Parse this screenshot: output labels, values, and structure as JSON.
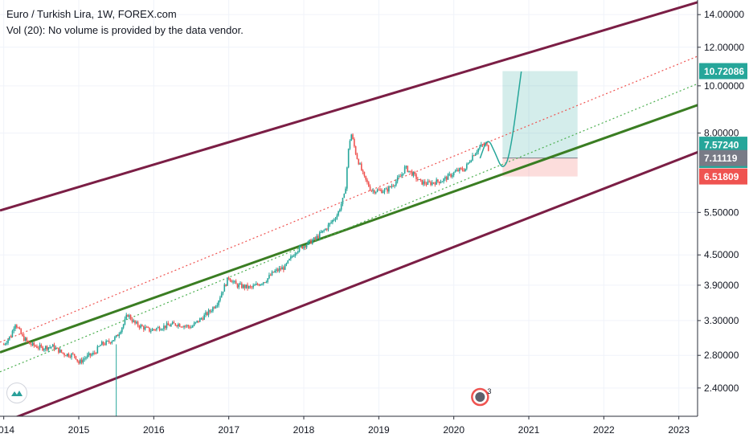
{
  "legend": {
    "title": "Euro / Turkish Lira, 1W, FOREX.com",
    "volume": "Vol (20): No volume is provided by the data vendor."
  },
  "chart_data": {
    "type": "line",
    "title": "Euro / Turkish Lira, 1W, FOREX.com",
    "y_scale": "log",
    "ylim": [
      2.1,
      15.0
    ],
    "xlim": [
      2013.95,
      2023.25
    ],
    "x_ticks": [
      "2014",
      "2015",
      "2016",
      "2017",
      "2018",
      "2019",
      "2020",
      "2021",
      "2022",
      "2023"
    ],
    "y_ticks": [
      "14.00000",
      "12.00000",
      "10.00000",
      "8.00000",
      "5.50000",
      "4.50000",
      "3.90000",
      "3.30000",
      "2.80000",
      "2.40000"
    ],
    "price_labels": [
      {
        "label": "10.72086",
        "value": 10.72086,
        "color": "#26a69a"
      },
      {
        "label": "7.57240",
        "value": 7.5724,
        "color": "#26a69a"
      },
      {
        "label": "09:19:09",
        "value": 7.32,
        "color": "#26a69a"
      },
      {
        "label": "7.11119",
        "value": 7.11119,
        "color": "#787b86"
      },
      {
        "label": "6.51809",
        "value": 6.51809,
        "color": "#ef5350"
      }
    ],
    "series": [
      {
        "kind": "ohlc-weekly",
        "points": [
          [
            2014.0,
            2.95
          ],
          [
            2014.1,
            3.08
          ],
          [
            2014.15,
            3.27
          ],
          [
            2014.25,
            3.05
          ],
          [
            2014.35,
            2.95
          ],
          [
            2014.5,
            2.9
          ],
          [
            2014.65,
            2.92
          ],
          [
            2014.8,
            2.82
          ],
          [
            2014.95,
            2.8
          ],
          [
            2015.0,
            2.7
          ],
          [
            2015.1,
            2.78
          ],
          [
            2015.2,
            2.82
          ],
          [
            2015.3,
            2.95
          ],
          [
            2015.4,
            2.98
          ],
          [
            2015.5,
            3.05
          ],
          [
            2015.6,
            3.25
          ],
          [
            2015.65,
            3.4
          ],
          [
            2015.75,
            3.25
          ],
          [
            2015.85,
            3.2
          ],
          [
            2015.95,
            3.15
          ],
          [
            2016.1,
            3.2
          ],
          [
            2016.3,
            3.25
          ],
          [
            2016.5,
            3.2
          ],
          [
            2016.6,
            3.3
          ],
          [
            2016.75,
            3.45
          ],
          [
            2016.85,
            3.6
          ],
          [
            2016.95,
            3.9
          ],
          [
            2017.0,
            4.05
          ],
          [
            2017.1,
            3.9
          ],
          [
            2017.3,
            3.85
          ],
          [
            2017.5,
            4.0
          ],
          [
            2017.6,
            4.15
          ],
          [
            2017.75,
            4.25
          ],
          [
            2017.9,
            4.6
          ],
          [
            2018.0,
            4.7
          ],
          [
            2018.15,
            4.85
          ],
          [
            2018.3,
            5.1
          ],
          [
            2018.45,
            5.45
          ],
          [
            2018.55,
            6.0
          ],
          [
            2018.6,
            7.5
          ],
          [
            2018.63,
            8.0
          ],
          [
            2018.7,
            7.2
          ],
          [
            2018.8,
            6.5
          ],
          [
            2018.9,
            6.1
          ],
          [
            2019.0,
            6.1
          ],
          [
            2019.1,
            6.1
          ],
          [
            2019.2,
            6.3
          ],
          [
            2019.3,
            6.55
          ],
          [
            2019.35,
            6.8
          ],
          [
            2019.45,
            6.6
          ],
          [
            2019.55,
            6.35
          ],
          [
            2019.65,
            6.3
          ],
          [
            2019.75,
            6.35
          ],
          [
            2019.85,
            6.4
          ],
          [
            2019.95,
            6.55
          ],
          [
            2020.05,
            6.7
          ],
          [
            2020.15,
            6.75
          ],
          [
            2020.25,
            7.2
          ],
          [
            2020.35,
            7.5
          ],
          [
            2020.42,
            7.6
          ],
          [
            2020.47,
            7.4
          ]
        ],
        "color_up": "#26a69a",
        "color_down": "#ef5350"
      },
      {
        "name": "",
        "kind": "channel-upper",
        "x": [
          2013.95,
          2023.25
        ],
        "y": [
          5.55,
          14.84
        ],
        "color": "#7b1e45"
      },
      {
        "name": "",
        "kind": "channel-lower",
        "x": [
          2013.95,
          2023.25
        ],
        "y": [
          2.03,
          7.31
        ],
        "color": "#7b1e45"
      },
      {
        "name": "",
        "kind": "trendline",
        "x": [
          2013.95,
          2023.25
        ],
        "y": [
          2.84,
          9.13
        ],
        "color": "#3a7d22"
      },
      {
        "name": "",
        "kind": "dotted",
        "x": [
          2013.95,
          2023.25
        ],
        "y": [
          2.98,
          11.5
        ],
        "color": "#ef5350"
      },
      {
        "name": "",
        "kind": "dotted",
        "x": [
          2013.95,
          2023.25
        ],
        "y": [
          2.59,
          10.1
        ],
        "color": "#4caf50"
      },
      {
        "name": "",
        "kind": "projection",
        "x": [
          2020.35,
          2020.45,
          2020.55,
          2020.65,
          2020.75,
          2020.9
        ],
        "y": [
          7.1,
          7.85,
          7.3,
          6.7,
          7.2,
          10.7
        ],
        "color": "#26a69a"
      }
    ],
    "position_tool": {
      "x_start": 2020.65,
      "x_end": 2021.65,
      "entry": 7.11119,
      "target": 10.72086,
      "stop": 6.51809,
      "profit_color": "#26a69a",
      "loss_color": "#ef5350"
    },
    "events": [
      {
        "x": 2020.35,
        "label": "3"
      }
    ],
    "grid": true
  }
}
